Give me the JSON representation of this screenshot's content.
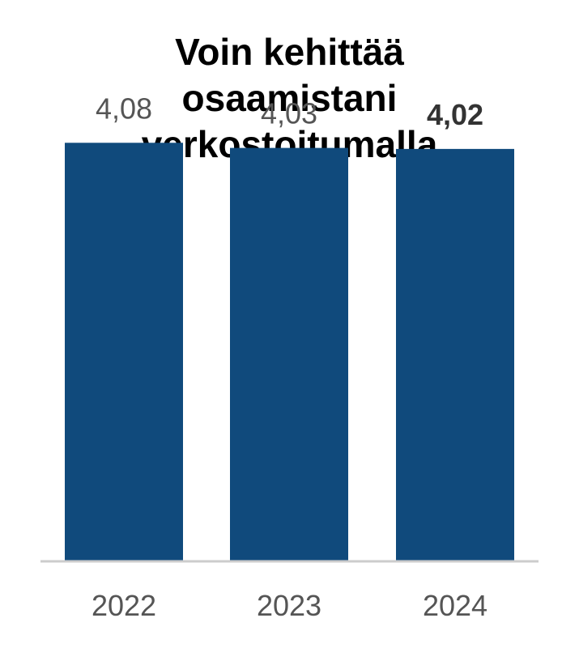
{
  "chart_data": {
    "type": "bar",
    "title_lines": [
      "Voin kehittää",
      "osaamistani",
      "verkostoitumalla"
    ],
    "categories": [
      "2022",
      "2023",
      "2024"
    ],
    "values": [
      4.08,
      4.03,
      4.02
    ],
    "value_labels": [
      "4,08",
      "4,03",
      "4,02"
    ],
    "highlighted_category": "2024",
    "bar_color": "#104a7c",
    "axis_line_color": "#cccccc",
    "label_color": "#555555",
    "ylim": [
      0,
      5
    ],
    "grid": false,
    "legend": "none"
  }
}
